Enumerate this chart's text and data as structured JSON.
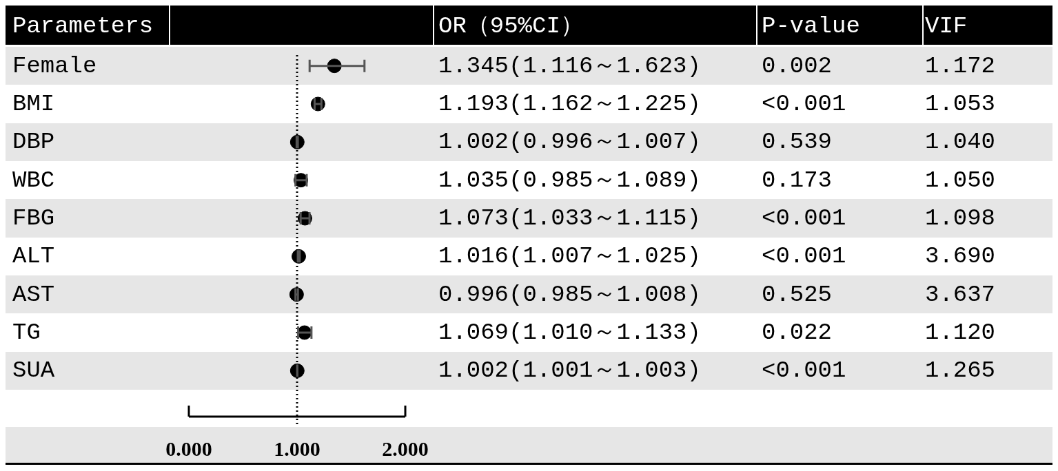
{
  "chart_data": {
    "type": "scatter",
    "orientation": "horizontal",
    "ylabel": "Parameters",
    "color": "#000000",
    "marker": "circle",
    "categories": [
      "Female",
      "BMI",
      "DBP",
      "WBC",
      "FBG",
      "ALT",
      "AST",
      "TG",
      "SUA"
    ],
    "values": [
      1.345,
      1.193,
      1.002,
      1.035,
      1.073,
      1.016,
      0.996,
      1.069,
      1.002
    ],
    "errors": [
      [
        1.116,
        1.623
      ],
      [
        1.162,
        1.225
      ],
      [
        0.996,
        1.007
      ],
      [
        0.985,
        1.089
      ],
      [
        1.033,
        1.115
      ],
      [
        1.007,
        1.025
      ],
      [
        0.985,
        1.008
      ],
      [
        1.01,
        1.133
      ],
      [
        1.001,
        1.003
      ]
    ],
    "value_labels": [
      "1.345(1.116～1.623)",
      "1.193(1.162～1.225)",
      "1.002(0.996～1.007)",
      "1.035(0.985～1.089)",
      "1.073(1.033～1.115)",
      "1.016(1.007～1.025)",
      "0.996(0.985～1.008)",
      "1.069(1.010～1.133)",
      "1.002(1.001～1.003)"
    ],
    "xlim": [
      0,
      2
    ],
    "xticks": [
      {
        "value": 0,
        "label": "0.000"
      },
      {
        "value": 1,
        "label": "1.000"
      },
      {
        "value": 2,
        "label": "2.000"
      }
    ],
    "ref_lines": [
      {
        "axis": "x",
        "value": 1,
        "line_style": "dotted",
        "color": "#000000"
      }
    ],
    "annotations": [
      "OR（95%CI）",
      "P-value",
      "VIF",
      "0.002",
      "1.172",
      "<0.001",
      "1.053",
      "0.539",
      "1.040",
      "0.173",
      "1.050",
      "<0.001",
      "1.098",
      "<0.001",
      "3.690",
      "0.525",
      "3.637",
      "0.022",
      "1.120",
      "<0.001",
      "1.265"
    ]
  }
}
